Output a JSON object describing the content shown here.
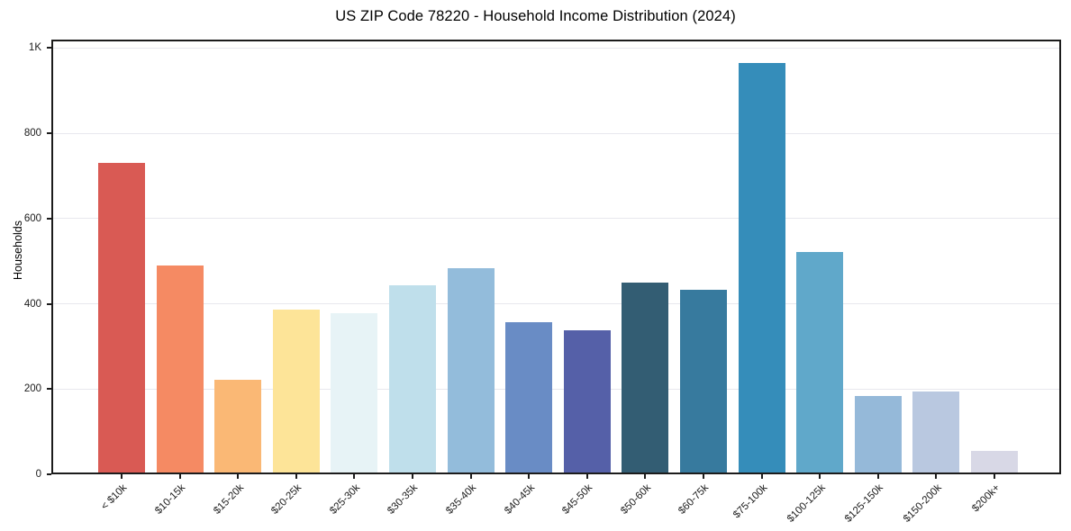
{
  "chart_data": {
    "type": "bar",
    "title": "US ZIP Code 78220 - Household Income Distribution (2024)",
    "xlabel": "",
    "ylabel": "Households",
    "ylim": [
      0,
      1020
    ],
    "grid": "horizontal-light",
    "legend": "none",
    "categories": [
      "< $10k",
      "$10-15k",
      "$15-20k",
      "$20-25k",
      "$25-30k",
      "$30-35k",
      "$35-40k",
      "$40-45k",
      "$45-50k",
      "$50-60k",
      "$60-75k",
      "$75-100k",
      "$100-125k",
      "$125-150k",
      "$150-200k",
      "$200k+"
    ],
    "values": [
      730,
      490,
      221,
      387,
      377,
      443,
      483,
      356,
      337,
      449,
      434,
      966,
      522,
      183,
      195,
      55
    ],
    "bar_colors": [
      "#d95a54",
      "#f58a63",
      "#fab875",
      "#fde498",
      "#e7f3f6",
      "#bfdfeb",
      "#93bcdb",
      "#698cc5",
      "#5560a8",
      "#335d73",
      "#377a9e",
      "#358dba",
      "#60a8ca",
      "#95b9d9",
      "#b9c8e0",
      "#d8d8e6"
    ],
    "yticks": {
      "values": [
        0,
        200,
        400,
        600,
        800,
        1000
      ],
      "labels": [
        "0",
        "200",
        "400",
        "600",
        "800",
        "1K"
      ]
    },
    "frame_color": "#1c1c1c",
    "gridline_color": "#e8e8ee",
    "background_color": "#ffffff"
  }
}
